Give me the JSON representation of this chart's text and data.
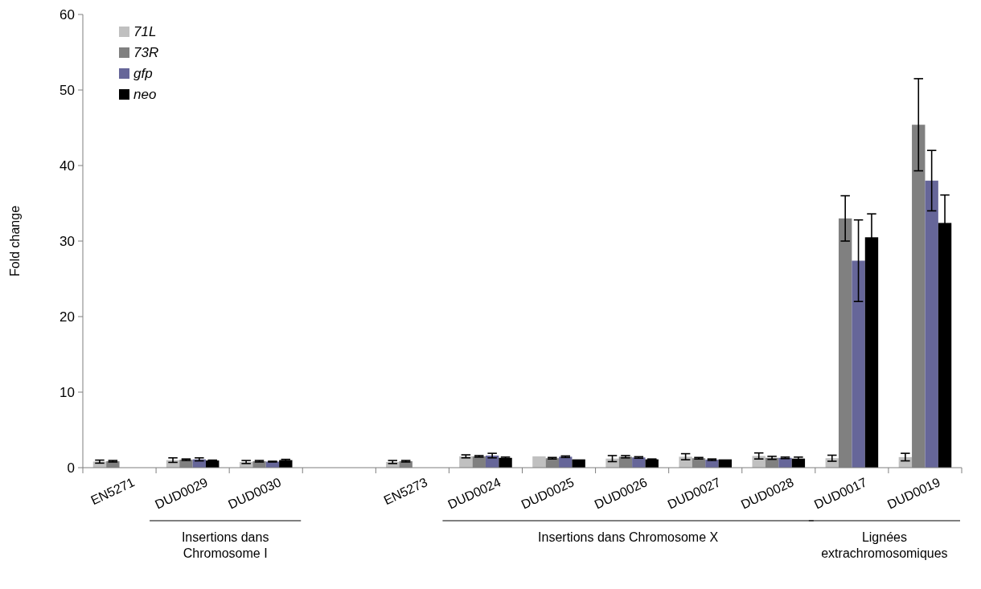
{
  "chart_data": {
    "type": "bar",
    "ylabel": "Fold change",
    "categories": [
      "EN5271",
      "DUD0029",
      "DUD0030",
      null,
      "EN5273",
      "DUD0024",
      "DUD0025",
      "DUD0026",
      "DUD0027",
      "DUD0028",
      "DUD0017",
      "DUD0019"
    ],
    "series": [
      {
        "name": "71L",
        "color": "#c0c0c0",
        "values": [
          0.8,
          1.0,
          0.75,
          null,
          0.75,
          1.5,
          1.5,
          1.2,
          1.45,
          1.55,
          1.25,
          1.4
        ],
        "errors": [
          0.2,
          0.3,
          0.2,
          null,
          0.2,
          0.2,
          null,
          0.4,
          0.4,
          0.4,
          0.4,
          0.5
        ]
      },
      {
        "name": "73R",
        "color": "#808080",
        "values": [
          0.85,
          1.05,
          0.85,
          null,
          0.85,
          1.5,
          1.25,
          1.45,
          1.25,
          1.3,
          33.0,
          45.4
        ],
        "errors": [
          0.1,
          0.1,
          0.1,
          null,
          0.1,
          0.1,
          0.1,
          0.15,
          0.1,
          0.2,
          3.0,
          6.1
        ]
      },
      {
        "name": "gfp",
        "color": "#666699",
        "values": [
          null,
          1.1,
          0.8,
          null,
          null,
          1.6,
          1.45,
          1.35,
          1.05,
          1.3,
          27.4,
          38.0
        ],
        "errors": [
          null,
          0.2,
          0.05,
          null,
          null,
          0.3,
          0.1,
          0.1,
          0.1,
          0.1,
          5.4,
          4.0
        ]
      },
      {
        "name": "neo",
        "color": "#000000",
        "values": [
          null,
          0.95,
          1.0,
          null,
          null,
          1.3,
          1.1,
          1.1,
          1.1,
          1.2,
          30.5,
          32.4
        ],
        "errors": [
          null,
          0.05,
          0.1,
          null,
          null,
          0.1,
          null,
          0.05,
          null,
          0.2,
          3.1,
          3.7
        ]
      }
    ],
    "ylim": [
      0,
      60
    ],
    "yticks": [
      0,
      10,
      20,
      30,
      40,
      50,
      60
    ],
    "legend": "top left",
    "annotations": [
      "Insertions dans Chromosome I",
      "Insertions dans Chromosome X",
      "Lignées extrachromosomiques"
    ]
  }
}
